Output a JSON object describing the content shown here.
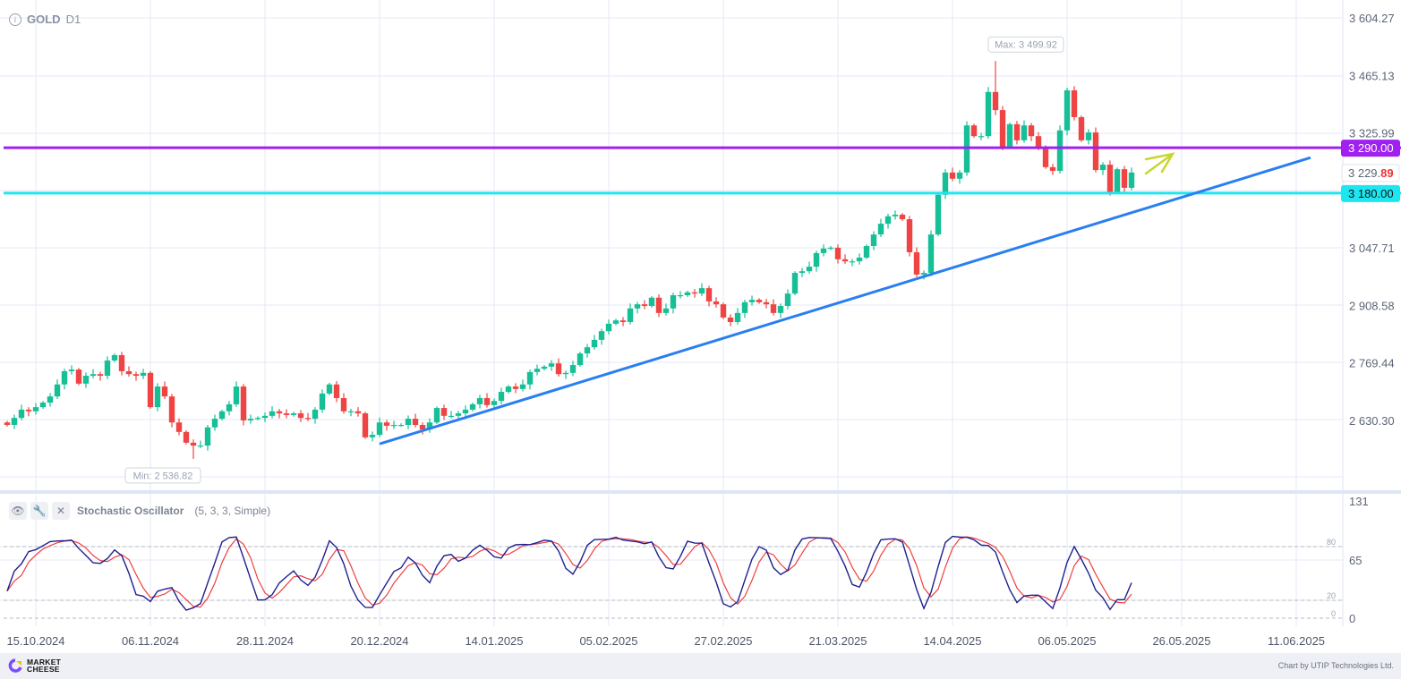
{
  "header": {
    "symbol": "GOLD",
    "timeframe": "D1",
    "info_icon": "info-icon"
  },
  "indicator": {
    "name": "Stochastic Oscillator",
    "params": "(5, 3, 3, Simple)",
    "icons": [
      "eye-icon",
      "wrench-icon",
      "close-icon"
    ]
  },
  "footer": {
    "logo_line1": "MARKET",
    "logo_line2": "CHEESE",
    "credit": "Chart by UTIP Technologies Ltd."
  },
  "colors": {
    "up": "#16bf96",
    "down": "#ef4444",
    "resistance": "#a020f0",
    "support": "#1ee6f0",
    "trend": "#2a7ff0",
    "stoch_k": "#1f1f8f",
    "stoch_d": "#ee4040",
    "arrow": "#c8d62e"
  },
  "chart_data": {
    "type": "candlestick",
    "title": "GOLD D1",
    "first_open": 2625,
    "closes": [
      2619,
      2636,
      2656,
      2652,
      2662,
      2673,
      2688,
      2717,
      2749,
      2753,
      2719,
      2738,
      2742,
      2738,
      2775,
      2788,
      2749,
      2742,
      2738,
      2745,
      2662,
      2712,
      2688,
      2625,
      2602,
      2576,
      2569,
      2569,
      2613,
      2634,
      2652,
      2669,
      2712,
      2630,
      2634,
      2636,
      2641,
      2652,
      2647,
      2643,
      2647,
      2636,
      2634,
      2656,
      2695,
      2717,
      2684,
      2652,
      2652,
      2647,
      2589,
      2595,
      2625,
      2617,
      2619,
      2619,
      2634,
      2619,
      2608,
      2625,
      2660,
      2641,
      2641,
      2647,
      2656,
      2669,
      2684,
      2667,
      2677,
      2699,
      2712,
      2706,
      2717,
      2747,
      2755,
      2760,
      2768,
      2742,
      2745,
      2764,
      2792,
      2807,
      2825,
      2846,
      2864,
      2872,
      2868,
      2901,
      2911,
      2907,
      2927,
      2890,
      2901,
      2933,
      2933,
      2940,
      2937,
      2950,
      2918,
      2911,
      2879,
      2868,
      2890,
      2916,
      2922,
      2916,
      2911,
      2890,
      2907,
      2937,
      2987,
      2991,
      3002,
      3035,
      3046,
      3048,
      3020,
      3015,
      3015,
      3024,
      3052,
      3080,
      3106,
      3124,
      3128,
      3117,
      3037,
      2983,
      2987,
      3080,
      3176,
      3230,
      3215,
      3230,
      3344,
      3318,
      3318,
      3425,
      3381,
      3292,
      3347,
      3308,
      3344,
      3318,
      3292,
      3243,
      3234,
      3332,
      3429,
      3364,
      3308,
      3327,
      3236,
      3249,
      3182,
      3238,
      3193,
      3230
    ],
    "max": {
      "label": "Max: 3 499.92",
      "value": 3499.92,
      "index": 138
    },
    "min": {
      "label": "Min: 2 536.82",
      "value": 2536.82,
      "index": 26
    },
    "y_ticks": [
      "3 604.27",
      "3 465.13",
      "3 325.99",
      "3 047.71",
      "2 908.58",
      "2 769.44",
      "2 630.30"
    ],
    "y_tick_values": [
      3604.27,
      3465.13,
      3325.99,
      3047.71,
      2908.58,
      2769.44,
      2630.3
    ],
    "ylim": [
      2491.16,
      3604.27
    ],
    "last_price": {
      "int": "3 229.",
      "dec": "89",
      "value": 3229.89
    },
    "levels": [
      {
        "name": "resistance",
        "value": 3290.0,
        "label": "3 290.00"
      },
      {
        "name": "support",
        "value": 3180.0,
        "label": "3 180.00"
      }
    ],
    "trendline": {
      "from": {
        "index": 52,
        "price": 2573
      },
      "to": {
        "index": 182,
        "price": 3266
      }
    },
    "x_ticks": [
      "15.10.2024",
      "06.11.2024",
      "28.11.2024",
      "20.12.2024",
      "14.01.2025",
      "05.02.2025",
      "27.02.2025",
      "21.03.2025",
      "14.04.2025",
      "06.05.2025",
      "26.05.2025",
      "11.06.2025"
    ],
    "x_tick_index": [
      4,
      20,
      36,
      52,
      68,
      84,
      100,
      116,
      132,
      148,
      164,
      180
    ],
    "stochastic": {
      "k_period": 5,
      "k_smooth": 3,
      "d_period": 3,
      "ylim": [
        0,
        131
      ],
      "axis_ticks": [
        "131",
        "65",
        "0"
      ],
      "axis_values": [
        131,
        65,
        0
      ],
      "levels": [
        "80",
        "20",
        "0"
      ],
      "level_values": [
        80,
        20,
        0
      ]
    }
  }
}
